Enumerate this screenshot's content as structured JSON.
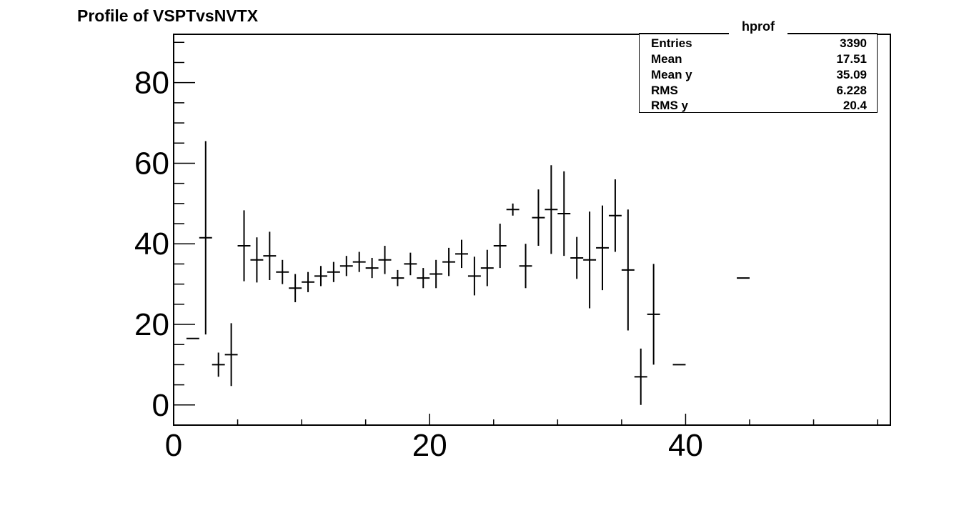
{
  "chart_data": {
    "type": "scatter",
    "title": "Profile of VSPTvsNVTX",
    "xlabel": "",
    "ylabel": "",
    "xlim": [
      0,
      56
    ],
    "ylim": [
      -5,
      92
    ],
    "x_ticks": [
      0,
      20,
      40
    ],
    "y_ticks": [
      0,
      20,
      40,
      60,
      80
    ],
    "x_tick_labels": [
      "0",
      "20",
      "40"
    ],
    "y_tick_labels": [
      "0",
      "20",
      "40",
      "60",
      "80"
    ],
    "grid": false,
    "legend": "none",
    "bin_width": 1,
    "points": [
      {
        "x": 1.5,
        "y": 16.5,
        "err": 0
      },
      {
        "x": 2.5,
        "y": 41.5,
        "err": 24
      },
      {
        "x": 3.5,
        "y": 10,
        "err": 3
      },
      {
        "x": 4.5,
        "y": 12.5,
        "err": 7.8
      },
      {
        "x": 5.5,
        "y": 39.5,
        "err": 8.8
      },
      {
        "x": 6.5,
        "y": 36,
        "err": 5.6
      },
      {
        "x": 7.5,
        "y": 37,
        "err": 6
      },
      {
        "x": 8.5,
        "y": 33,
        "err": 3
      },
      {
        "x": 9.5,
        "y": 29,
        "err": 3.5
      },
      {
        "x": 10.5,
        "y": 30.5,
        "err": 2.5
      },
      {
        "x": 11.5,
        "y": 32,
        "err": 2.5
      },
      {
        "x": 12.5,
        "y": 33,
        "err": 2.5
      },
      {
        "x": 13.5,
        "y": 34.5,
        "err": 2.5
      },
      {
        "x": 14.5,
        "y": 35.5,
        "err": 2.5
      },
      {
        "x": 15.5,
        "y": 34,
        "err": 2.5
      },
      {
        "x": 16.5,
        "y": 36,
        "err": 3.5
      },
      {
        "x": 17.5,
        "y": 31.5,
        "err": 2
      },
      {
        "x": 18.5,
        "y": 35,
        "err": 2.8
      },
      {
        "x": 19.5,
        "y": 31.5,
        "err": 2.5
      },
      {
        "x": 20.5,
        "y": 32.5,
        "err": 3.5
      },
      {
        "x": 21.5,
        "y": 35.5,
        "err": 3.5
      },
      {
        "x": 22.5,
        "y": 37.5,
        "err": 3.5
      },
      {
        "x": 23.5,
        "y": 32,
        "err": 4.8
      },
      {
        "x": 24.5,
        "y": 34,
        "err": 4.5
      },
      {
        "x": 25.5,
        "y": 39.5,
        "err": 5.5
      },
      {
        "x": 26.5,
        "y": 48.5,
        "err": 1.5
      },
      {
        "x": 27.5,
        "y": 34.5,
        "err": 5.5
      },
      {
        "x": 28.5,
        "y": 46.5,
        "err": 7
      },
      {
        "x": 29.5,
        "y": 48.5,
        "err": 11
      },
      {
        "x": 30.5,
        "y": 47.5,
        "err": 10.5
      },
      {
        "x": 31.5,
        "y": 36.5,
        "err": 5.2
      },
      {
        "x": 32.5,
        "y": 36,
        "err": 12
      },
      {
        "x": 33.5,
        "y": 39,
        "err": 10.5
      },
      {
        "x": 34.5,
        "y": 47,
        "err": 9
      },
      {
        "x": 35.5,
        "y": 33.5,
        "err": 15
      },
      {
        "x": 36.5,
        "y": 7,
        "err": 7
      },
      {
        "x": 37.5,
        "y": 22.5,
        "err": 12.5
      },
      {
        "x": 39.5,
        "y": 10,
        "err": 0
      },
      {
        "x": 44.5,
        "y": 31.5,
        "err": 0
      }
    ]
  },
  "stats_box": {
    "title": "hprof",
    "rows": [
      {
        "label": "Entries",
        "value": "3390"
      },
      {
        "label": "Mean",
        "value": "17.51"
      },
      {
        "label": "Mean y",
        "value": "35.09"
      },
      {
        "label": "RMS",
        "value": "6.228"
      },
      {
        "label": "RMS y",
        "value": "20.4"
      }
    ]
  }
}
